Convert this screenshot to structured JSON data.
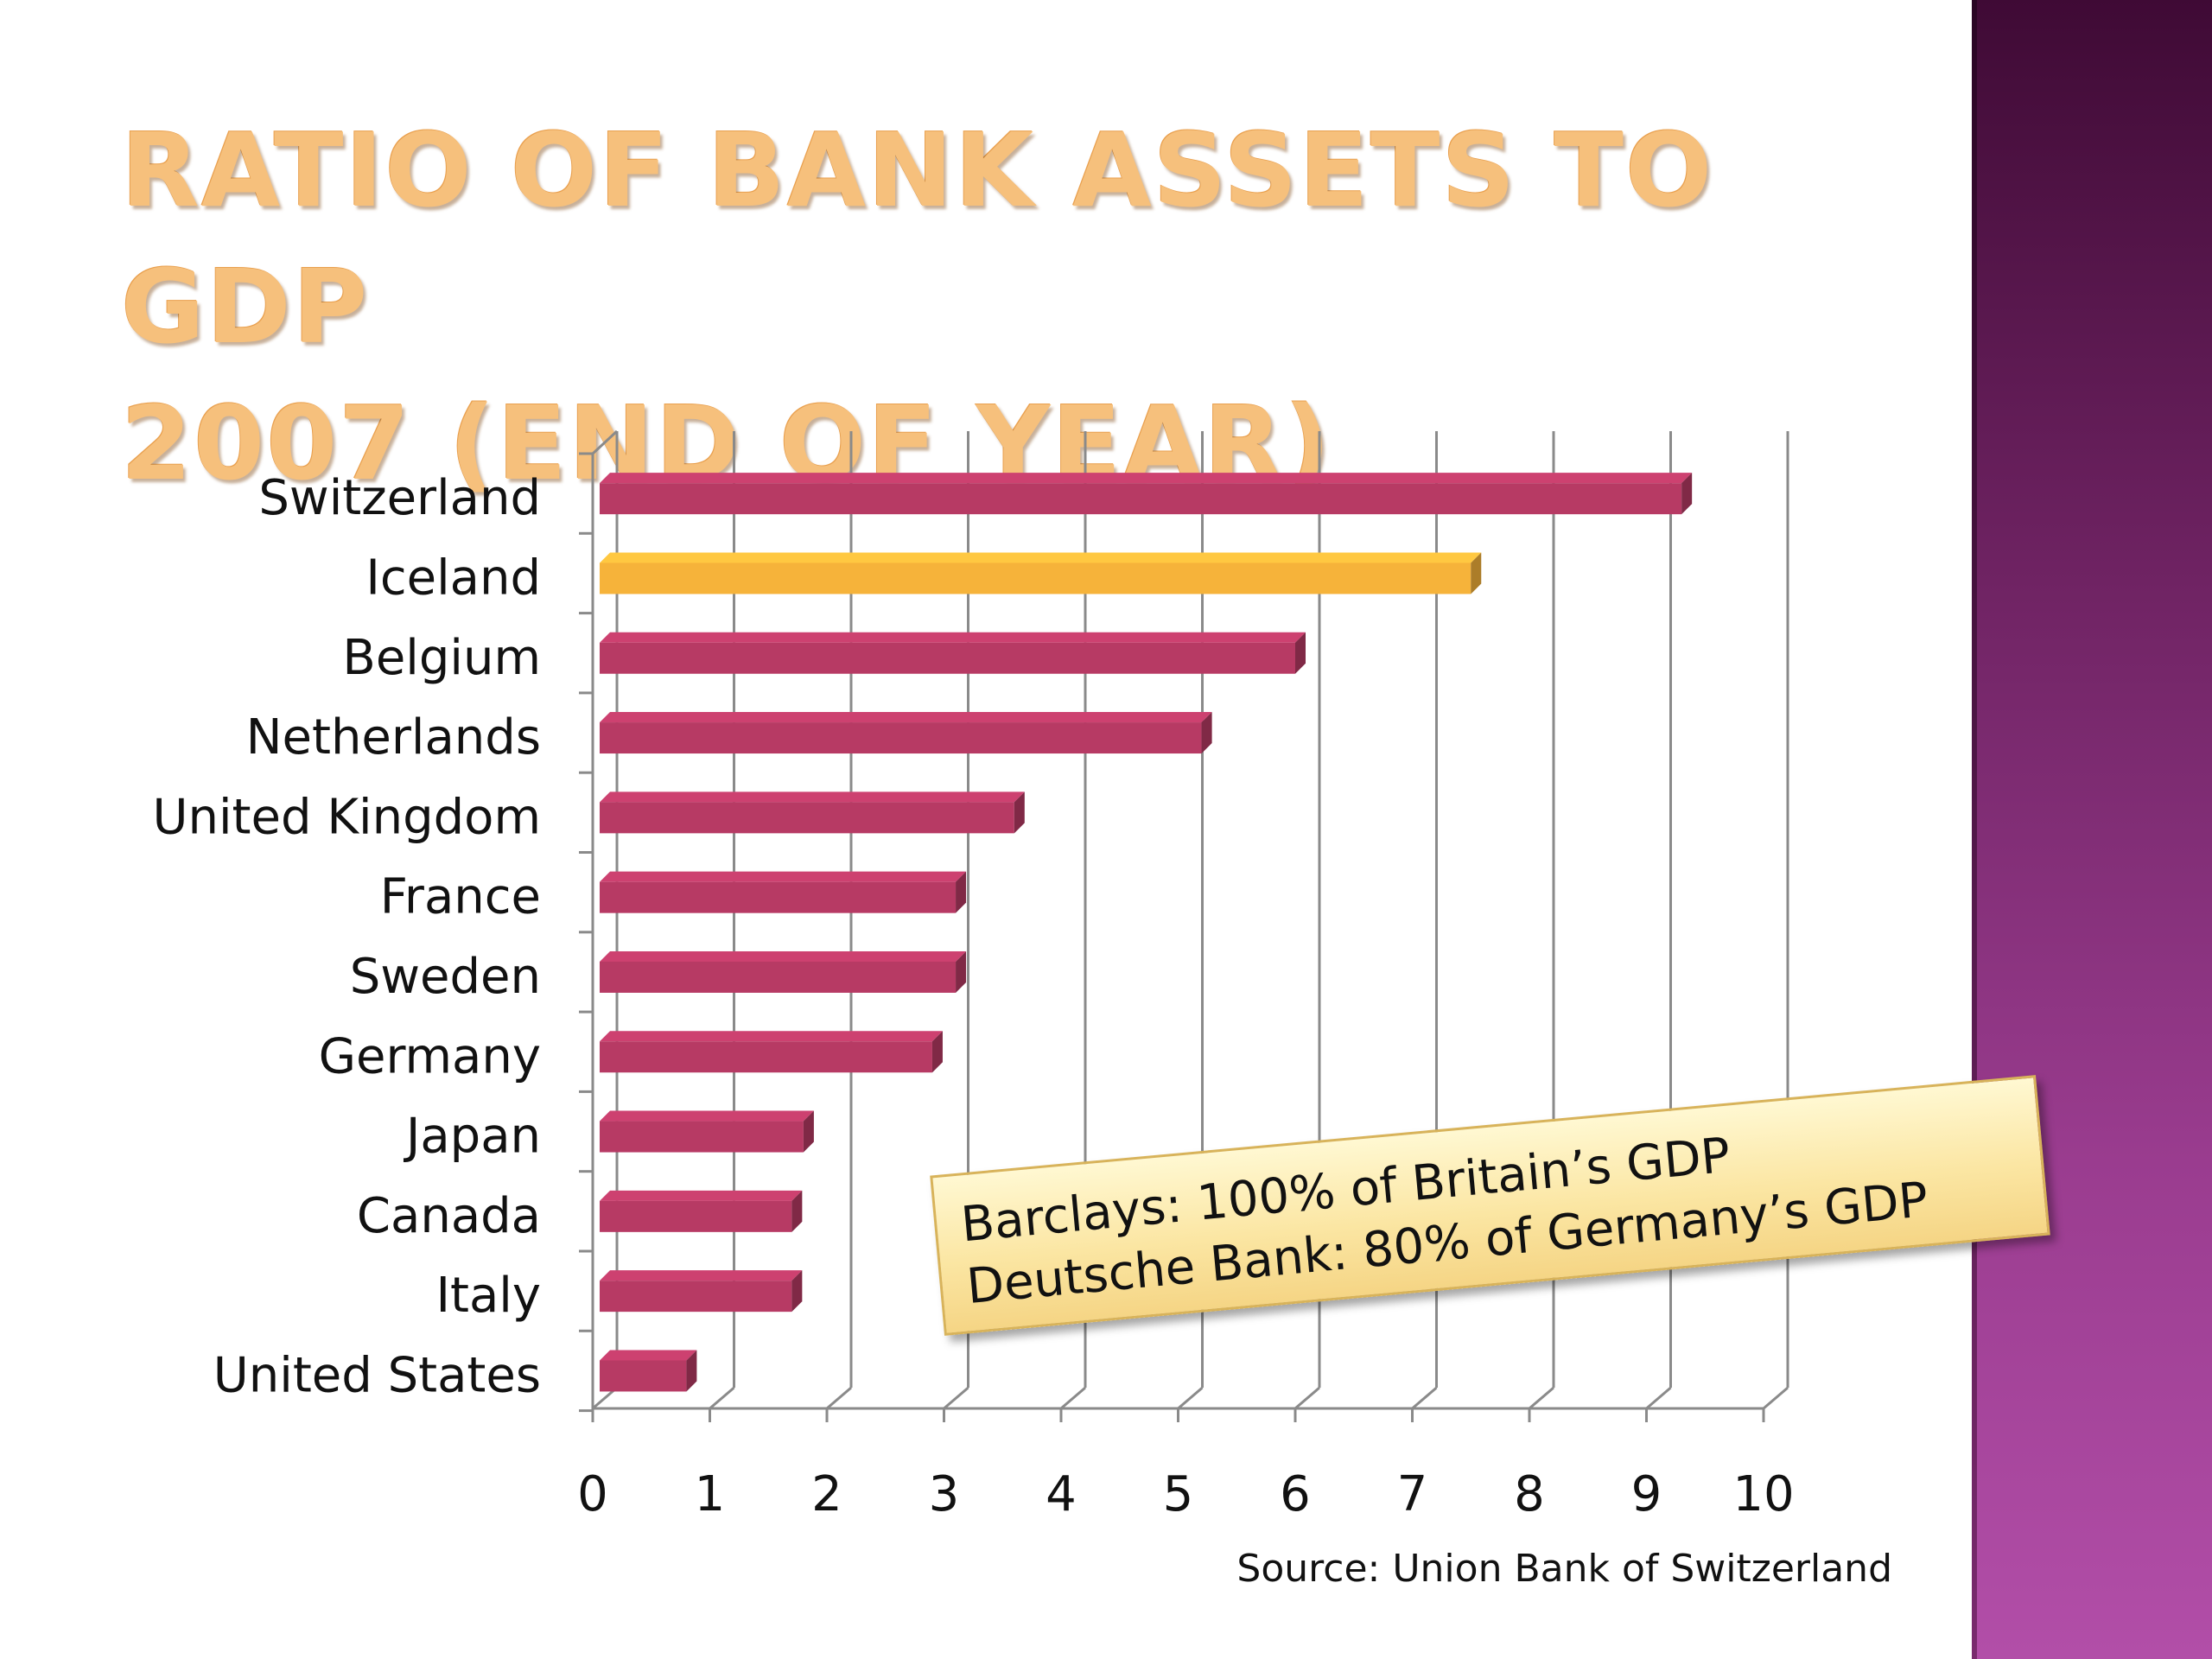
{
  "title_lines": [
    "Ratio of bank assets to GDP",
    "2007 (end of year)"
  ],
  "callout": {
    "line1": "Barclays: 100% of Britain’s GDP",
    "line2": "Deutsche Bank: 80% of Germany’s GDP"
  },
  "source": "Source: Union Bank of Switzerland",
  "colors": {
    "bar": "#b73a64",
    "bar_highlight": "#f6b33a",
    "grid": "#8a8a8a",
    "band": "#6f2363"
  },
  "chart_data": {
    "type": "bar",
    "orientation": "horizontal",
    "categories": [
      "Switzerland",
      "Iceland",
      "Belgium",
      "Netherlands",
      "United Kingdom",
      "France",
      "Sweden",
      "Germany",
      "Japan",
      "Canada",
      "Italy",
      "United States"
    ],
    "values": [
      9.3,
      7.5,
      6.0,
      5.2,
      3.6,
      3.1,
      3.1,
      2.9,
      1.8,
      1.7,
      1.7,
      0.8
    ],
    "highlight_category": "Iceland",
    "x_ticks": [
      "0",
      "1",
      "2",
      "3",
      "4",
      "5",
      "6",
      "7",
      "8",
      "9",
      "10"
    ],
    "xlim": [
      0,
      10
    ],
    "grid": true,
    "legend": "none"
  }
}
